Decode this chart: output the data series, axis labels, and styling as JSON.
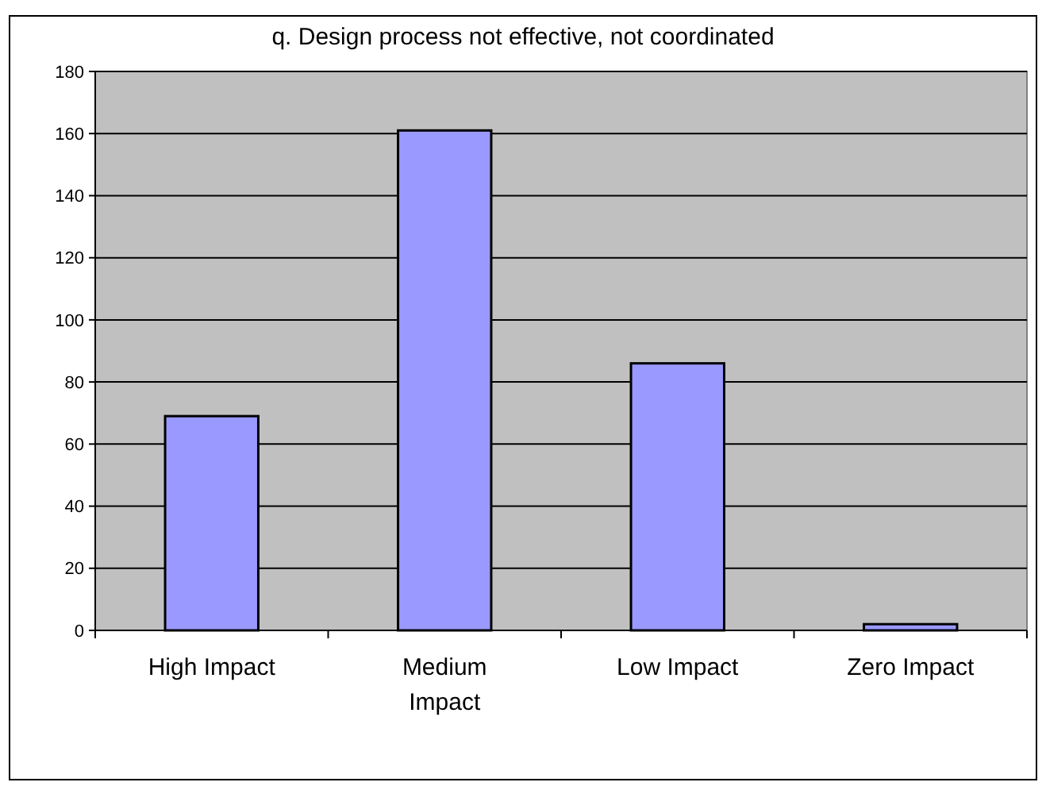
{
  "chart_data": {
    "type": "bar",
    "title": "q. Design process not effective, not coordinated",
    "categories": [
      "High Impact",
      "Medium Impact",
      "Low Impact",
      "Zero Impact"
    ],
    "values": [
      69,
      161,
      86,
      2
    ],
    "color": "#9999ff",
    "ylim": [
      0,
      180
    ],
    "yticks": [
      0,
      20,
      40,
      60,
      80,
      100,
      120,
      140,
      160,
      180
    ],
    "grid": "y"
  }
}
